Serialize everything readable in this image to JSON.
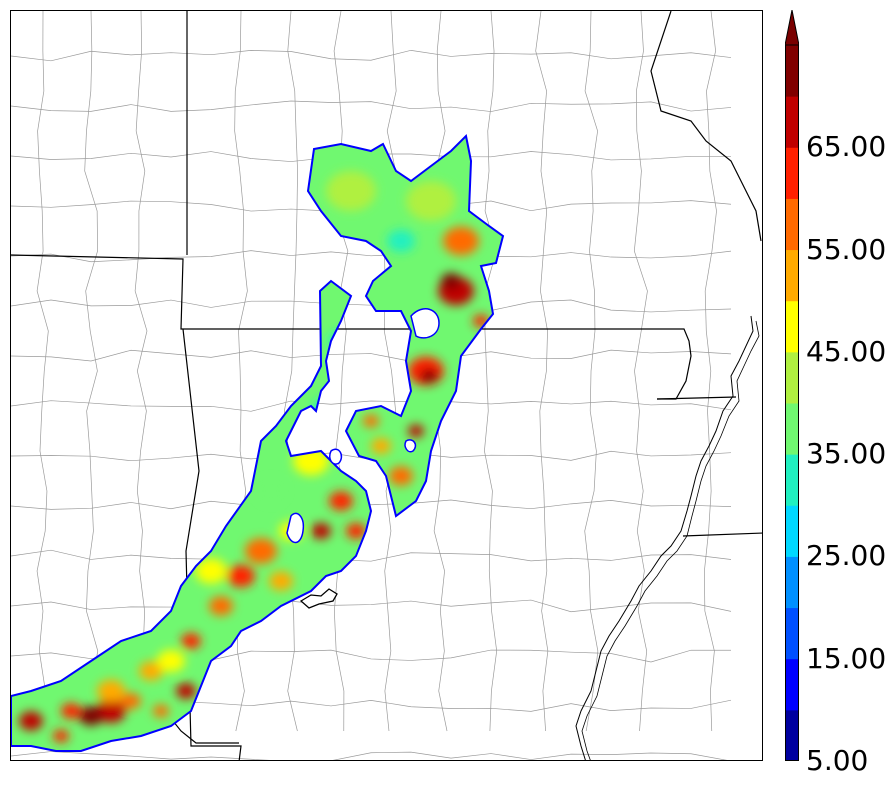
{
  "map": {
    "kind": "precipitation-style shaded field over state and county boundaries"
  },
  "colorbar": {
    "colors": [
      "#00009f",
      "#0000ff",
      "#0050ff",
      "#0090ff",
      "#00d8ff",
      "#20f0c0",
      "#70f870",
      "#b0f040",
      "#ffff00",
      "#ffaa00",
      "#ff6a00",
      "#ff2000",
      "#c00000",
      "#800000"
    ],
    "extend_color": "#7a0000",
    "labels": [
      "5.00",
      "15.00",
      "25.00",
      "35.00",
      "45.00",
      "55.00",
      "65.00"
    ],
    "min": 5,
    "max": 75,
    "step": 5
  }
}
